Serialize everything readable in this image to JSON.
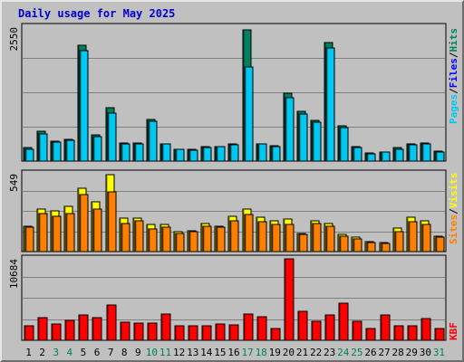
{
  "title": "Daily usage for May 2025",
  "colors": {
    "background": "#c0c0c0",
    "hits": "#00805c",
    "files": "#0000ff",
    "pages": "#00c8f0",
    "visits": "#ffff00",
    "sites": "#ff8000",
    "kbytes": "#ff0000",
    "weekend_label": "#00805c",
    "weekday_label": "#000000",
    "title": "#0000cc"
  },
  "chart_data": [
    {
      "type": "bar",
      "panel": "top",
      "max_label": "2550",
      "ylim": [
        0,
        2550
      ],
      "legend": [
        "Pages",
        "/",
        "Files",
        "/",
        "Hits"
      ],
      "series": [
        {
          "name": "Hits",
          "values": [
            250,
            560,
            380,
            420,
            2200,
            500,
            1020,
            350,
            350,
            800,
            330,
            230,
            230,
            270,
            280,
            330,
            2500,
            330,
            290,
            1300,
            950,
            770,
            2250,
            670,
            270,
            150,
            180,
            260,
            320,
            340,
            190
          ]
        },
        {
          "name": "Files",
          "values": [
            230,
            520,
            360,
            400,
            2100,
            470,
            920,
            330,
            330,
            760,
            320,
            220,
            210,
            250,
            270,
            310,
            1800,
            320,
            270,
            1200,
            900,
            740,
            2150,
            640,
            250,
            140,
            170,
            230,
            310,
            320,
            170
          ]
        },
        {
          "name": "Pages",
          "values": [
            230,
            520,
            360,
            400,
            2100,
            470,
            920,
            330,
            330,
            760,
            320,
            220,
            210,
            250,
            270,
            310,
            1800,
            320,
            270,
            1200,
            900,
            740,
            2150,
            640,
            250,
            140,
            170,
            230,
            310,
            320,
            170
          ]
        }
      ]
    },
    {
      "type": "bar",
      "panel": "middle",
      "max_label": "549",
      "ylim": [
        0,
        549
      ],
      "legend": [
        "Sites",
        "/",
        "Visits"
      ],
      "series": [
        {
          "name": "Visits",
          "values": [
            180,
            300,
            290,
            320,
            450,
            350,
            545,
            235,
            235,
            190,
            190,
            140,
            150,
            195,
            180,
            250,
            300,
            240,
            220,
            230,
            130,
            220,
            200,
            120,
            100,
            70,
            65,
            165,
            240,
            220,
            110
          ]
        },
        {
          "name": "Sites",
          "values": [
            170,
            270,
            250,
            270,
            400,
            300,
            420,
            200,
            220,
            160,
            170,
            130,
            140,
            180,
            170,
            220,
            260,
            210,
            190,
            190,
            120,
            200,
            180,
            110,
            90,
            65,
            60,
            140,
            210,
            190,
            100
          ]
        }
      ]
    },
    {
      "type": "bar",
      "panel": "bottom",
      "max_label": "10684",
      "ylim": [
        0,
        10684
      ],
      "legend": [
        "KB",
        "F"
      ],
      "series": [
        {
          "name": "KBytes",
          "values": [
            1950,
            3000,
            2150,
            2650,
            3300,
            3000,
            4650,
            2400,
            2300,
            2300,
            3400,
            1900,
            1900,
            1900,
            2150,
            2000,
            3400,
            3100,
            1500,
            10684,
            3800,
            2500,
            3300,
            4850,
            2550,
            1500,
            3350,
            1900,
            1900,
            2900,
            1500
          ]
        }
      ]
    }
  ],
  "x_labels": [
    "1",
    "2",
    "3",
    "4",
    "5",
    "6",
    "7",
    "8",
    "9",
    "10",
    "11",
    "12",
    "13",
    "14",
    "15",
    "16",
    "17",
    "18",
    "19",
    "20",
    "21",
    "22",
    "23",
    "24",
    "25",
    "26",
    "27",
    "28",
    "29",
    "30",
    "31"
  ],
  "weekend_days": [
    3,
    4,
    10,
    11,
    17,
    18,
    24,
    25,
    31
  ]
}
